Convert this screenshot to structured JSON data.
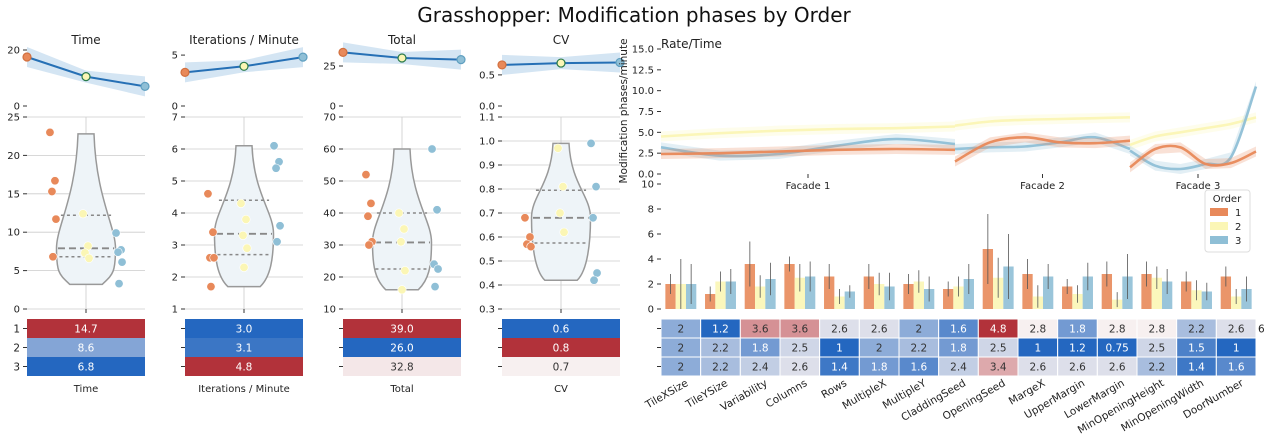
{
  "title": "Grasshopper: Modification phases by Order",
  "colors": {
    "order1": "#e8895a",
    "order2": "#fbf6b5",
    "order3": "#8fbfd6",
    "line": "#2670b5",
    "band": "#c6dcef",
    "heat_high": "#b2323a",
    "heat_low": "#2467c0",
    "violin": "#eef4f8",
    "violin_edge": "#999999"
  },
  "chart_data": [
    {
      "type": "violin",
      "id": "time",
      "title": "Time",
      "xlabel": "Time",
      "top_ylim": [
        0,
        20
      ],
      "top_yticks": [
        "0",
        "20"
      ],
      "trend": [
        {
          "x": 1,
          "y": 17.5
        },
        {
          "x": 2,
          "y": 10.5
        },
        {
          "x": 3,
          "y": 7.0
        }
      ],
      "ylim": [
        0,
        25
      ],
      "yticks": [
        "0",
        "5",
        "10",
        "15",
        "20",
        "25"
      ],
      "violin": {
        "min": 3.2,
        "max": 22.8,
        "q1": 6.8,
        "median": 7.9,
        "q3": 12.2
      },
      "points": [
        {
          "order": 1,
          "y": 23.0
        },
        {
          "order": 1,
          "y": 16.7
        },
        {
          "order": 1,
          "y": 15.3
        },
        {
          "order": 1,
          "y": 11.7
        },
        {
          "order": 1,
          "y": 6.8
        },
        {
          "order": 2,
          "y": 12.4
        },
        {
          "order": 2,
          "y": 8.2
        },
        {
          "order": 2,
          "y": 7.3
        },
        {
          "order": 2,
          "y": 6.6
        },
        {
          "order": 3,
          "y": 9.9
        },
        {
          "order": 3,
          "y": 7.7
        },
        {
          "order": 3,
          "y": 7.4
        },
        {
          "order": 3,
          "y": 6.1
        },
        {
          "order": 3,
          "y": 3.3
        }
      ],
      "table": [
        {
          "order": "1",
          "value": 14.7,
          "label": "14.7"
        },
        {
          "order": "2",
          "value": 8.6,
          "label": "8.6"
        },
        {
          "order": "3",
          "value": 6.8,
          "label": "6.8"
        }
      ],
      "table_ylabels": [
        "1",
        "2",
        "3"
      ]
    },
    {
      "type": "violin",
      "id": "ipm",
      "title": "Iterations / Minute",
      "xlabel": "Iterations / Minute",
      "top_ylim": [
        0,
        5.5
      ],
      "top_yticks": [
        "0",
        "5"
      ],
      "trend": [
        {
          "x": 1,
          "y": 3.3
        },
        {
          "x": 2,
          "y": 3.9
        },
        {
          "x": 3,
          "y": 4.8
        }
      ],
      "ylim": [
        1,
        7
      ],
      "yticks": [
        "1",
        "2",
        "3",
        "4",
        "5",
        "6",
        "7"
      ],
      "violin": {
        "min": 1.7,
        "max": 6.1,
        "q1": 2.7,
        "median": 3.35,
        "q3": 4.4
      },
      "points": [
        {
          "order": 1,
          "y": 4.6
        },
        {
          "order": 1,
          "y": 3.4
        },
        {
          "order": 1,
          "y": 2.6
        },
        {
          "order": 1,
          "y": 2.6
        },
        {
          "order": 1,
          "y": 1.7
        },
        {
          "order": 2,
          "y": 4.3
        },
        {
          "order": 2,
          "y": 3.8
        },
        {
          "order": 2,
          "y": 3.3
        },
        {
          "order": 2,
          "y": 2.9
        },
        {
          "order": 2,
          "y": 2.3
        },
        {
          "order": 3,
          "y": 6.1
        },
        {
          "order": 3,
          "y": 5.6
        },
        {
          "order": 3,
          "y": 5.4
        },
        {
          "order": 3,
          "y": 3.6
        },
        {
          "order": 3,
          "y": 3.1
        }
      ],
      "table": [
        {
          "order": "1",
          "value": 3.0,
          "label": "3.0"
        },
        {
          "order": "2",
          "value": 3.1,
          "label": "3.1"
        },
        {
          "order": "3",
          "value": 4.8,
          "label": "4.8"
        }
      ],
      "table_ylabels": [
        "",
        "",
        ""
      ]
    },
    {
      "type": "violin",
      "id": "total",
      "title": "Total",
      "xlabel": "Total",
      "top_ylim": [
        0,
        35
      ],
      "top_yticks": [
        "0",
        "25"
      ],
      "trend": [
        {
          "x": 1,
          "y": 33.5
        },
        {
          "x": 2,
          "y": 30.0
        },
        {
          "x": 3,
          "y": 29.0
        }
      ],
      "ylim": [
        10,
        70
      ],
      "yticks": [
        "10",
        "20",
        "30",
        "40",
        "50",
        "60",
        "70"
      ],
      "violin": {
        "min": 16.0,
        "max": 60.0,
        "q1": 22.5,
        "median": 30.8,
        "q3": 40.0
      },
      "points": [
        {
          "order": 1,
          "y": 52.0
        },
        {
          "order": 1,
          "y": 43.0
        },
        {
          "order": 1,
          "y": 39.0
        },
        {
          "order": 1,
          "y": 31.0
        },
        {
          "order": 1,
          "y": 30.0
        },
        {
          "order": 2,
          "y": 40.0
        },
        {
          "order": 2,
          "y": 35.0
        },
        {
          "order": 2,
          "y": 31.0
        },
        {
          "order": 2,
          "y": 22.0
        },
        {
          "order": 2,
          "y": 16.0
        },
        {
          "order": 3,
          "y": 60.0
        },
        {
          "order": 3,
          "y": 41.0
        },
        {
          "order": 3,
          "y": 24.0
        },
        {
          "order": 3,
          "y": 22.5
        },
        {
          "order": 3,
          "y": 17.0
        }
      ],
      "table": [
        {
          "order": "1",
          "value": 39.0,
          "label": "39.0"
        },
        {
          "order": "2",
          "value": 26.0,
          "label": "26.0"
        },
        {
          "order": "3",
          "value": 32.8,
          "label": "32.8"
        }
      ],
      "table_ylabels": [
        "",
        "",
        ""
      ]
    },
    {
      "type": "violin",
      "id": "cv",
      "title": "CV",
      "xlabel": "CV",
      "top_ylim": [
        0,
        0.9
      ],
      "top_yticks": [
        "0.0",
        "0.5"
      ],
      "trend": [
        {
          "x": 1,
          "y": 0.66
        },
        {
          "x": 2,
          "y": 0.69
        },
        {
          "x": 3,
          "y": 0.7
        }
      ],
      "ylim": [
        0.3,
        1.1
      ],
      "yticks": [
        "0.3",
        "0.4",
        "0.5",
        "0.6",
        "0.7",
        "0.8",
        "0.9",
        "1.0",
        "1.1"
      ],
      "violin": {
        "min": 0.42,
        "max": 0.99,
        "q1": 0.575,
        "median": 0.68,
        "q3": 0.795
      },
      "points": [
        {
          "order": 1,
          "y": 0.68
        },
        {
          "order": 1,
          "y": 0.6
        },
        {
          "order": 1,
          "y": 0.57
        },
        {
          "order": 1,
          "y": 0.56
        },
        {
          "order": 2,
          "y": 0.97
        },
        {
          "order": 2,
          "y": 0.81
        },
        {
          "order": 2,
          "y": 0.7
        },
        {
          "order": 2,
          "y": 0.62
        },
        {
          "order": 3,
          "y": 0.99
        },
        {
          "order": 3,
          "y": 0.81
        },
        {
          "order": 3,
          "y": 0.68
        },
        {
          "order": 3,
          "y": 0.45
        },
        {
          "order": 3,
          "y": 0.42
        }
      ],
      "table": [
        {
          "order": "1",
          "value": 0.6,
          "label": "0.6"
        },
        {
          "order": "2",
          "value": 0.8,
          "label": "0.8"
        },
        {
          "order": "3",
          "value": 0.7,
          "label": "0.7"
        }
      ],
      "table_ylabels": [
        "",
        "",
        ""
      ]
    },
    {
      "type": "line",
      "id": "rate",
      "title": "Rate/Time",
      "ylabel": "Modification phases/minute",
      "ylim": [
        0,
        15
      ],
      "yticks": [
        "0.0",
        "2.5",
        "5.0",
        "7.5",
        "10.0",
        "12.5",
        "15.0"
      ],
      "facets": [
        {
          "label": "Facade 1",
          "x": [
            0,
            0.2,
            0.4,
            0.6,
            0.8,
            1.0
          ],
          "series": [
            {
              "order": 1,
              "values": [
                2.4,
                2.5,
                2.7,
                2.9,
                3.0,
                2.9
              ]
            },
            {
              "order": 2,
              "values": [
                4.5,
                4.9,
                5.2,
                5.4,
                5.5,
                5.7
              ]
            },
            {
              "order": 3,
              "values": [
                3.2,
                2.2,
                2.4,
                3.4,
                4.2,
                3.6
              ]
            }
          ]
        },
        {
          "label": "Facade 2",
          "x": [
            0,
            0.2,
            0.4,
            0.6,
            0.8,
            1.0
          ],
          "series": [
            {
              "order": 1,
              "values": [
                1.5,
                3.8,
                4.4,
                3.8,
                3.7,
                4.0
              ]
            },
            {
              "order": 2,
              "values": [
                5.8,
                6.3,
                6.5,
                6.6,
                6.7,
                6.8
              ]
            },
            {
              "order": 3,
              "values": [
                3.0,
                3.2,
                3.3,
                3.8,
                4.4,
                3.0
              ]
            }
          ]
        },
        {
          "label": "Facade 3",
          "x": [
            0,
            0.2,
            0.4,
            0.6,
            0.8,
            1.0
          ],
          "series": [
            {
              "order": 1,
              "values": [
                0.8,
                3.0,
                3.2,
                1.2,
                1.3,
                2.7
              ]
            },
            {
              "order": 2,
              "values": [
                3.5,
                4.5,
                5.0,
                5.5,
                6.0,
                6.8
              ]
            },
            {
              "order": 3,
              "values": [
                2.8,
                1.0,
                0.6,
                1.2,
                2.0,
                10.5
              ]
            }
          ]
        }
      ]
    },
    {
      "type": "bar",
      "id": "params",
      "ylim": [
        0,
        10
      ],
      "yticks": [
        "0",
        "2",
        "4",
        "6",
        "8",
        "10"
      ],
      "legend_title": "Order",
      "legend_labels": [
        "1",
        "2",
        "3"
      ],
      "legend_position": "top-right",
      "categories": [
        "TileXSize",
        "TileYSize",
        "Variability",
        "Columns",
        "Rows",
        "MultipleX",
        "MultipleY",
        "CladdingSeed",
        "OpeningSeed",
        "MargeX",
        "UpperMargin",
        "LowerMargin",
        "MinOpeningHeight",
        "MinOpeningWidth",
        "DoorNumber"
      ],
      "series": [
        {
          "name": "1",
          "values": [
            2.0,
            1.2,
            3.6,
            3.6,
            2.6,
            2.6,
            2.0,
            1.6,
            4.8,
            2.8,
            1.8,
            2.8,
            2.8,
            2.2,
            2.6
          ],
          "errors": [
            0.8,
            0.6,
            1.8,
            0.6,
            1.0,
            1.0,
            0.8,
            0.6,
            2.8,
            1.2,
            0.6,
            1.0,
            1.0,
            0.8,
            0.8
          ]
        },
        {
          "name": "2",
          "values": [
            2.0,
            2.2,
            1.8,
            2.5,
            1.0,
            2.0,
            2.2,
            1.8,
            2.5,
            1.0,
            1.2,
            0.75,
            2.5,
            1.5,
            1.0
          ],
          "errors": [
            2.0,
            0.8,
            0.9,
            1.1,
            0.6,
            0.9,
            0.9,
            0.8,
            1.6,
            0.9,
            0.7,
            0.6,
            0.9,
            0.8,
            0.6
          ]
        },
        {
          "name": "3",
          "values": [
            2.0,
            2.2,
            2.4,
            2.6,
            1.4,
            1.8,
            1.6,
            2.4,
            3.4,
            2.6,
            2.6,
            2.6,
            2.2,
            1.4,
            1.6
          ],
          "errors": [
            1.6,
            1.0,
            1.3,
            1.2,
            0.5,
            1.1,
            1.0,
            1.2,
            2.6,
            1.0,
            1.1,
            1.8,
            1.0,
            0.7,
            1.0
          ]
        }
      ],
      "table_ylabels": [
        "",
        "",
        ""
      ],
      "table_overflow": "6",
      "table": [
        [
          "2",
          "1.2",
          "3.6",
          "3.6",
          "2.6",
          "2.6",
          "2",
          "1.6",
          "4.8",
          "2.8",
          "1.8",
          "2.8",
          "2.8",
          "2.2",
          "2.6"
        ],
        [
          "2",
          "2.2",
          "1.8",
          "2.5",
          "1",
          "2",
          "2.2",
          "1.8",
          "2.5",
          "1",
          "1.2",
          "0.75",
          "2.5",
          "1.5",
          "1"
        ],
        [
          "2",
          "2.2",
          "2.4",
          "2.6",
          "1.4",
          "1.8",
          "1.6",
          "2.4",
          "3.4",
          "2.6",
          "2.6",
          "2.6",
          "2.2",
          "1.4",
          "1.6"
        ]
      ]
    }
  ]
}
